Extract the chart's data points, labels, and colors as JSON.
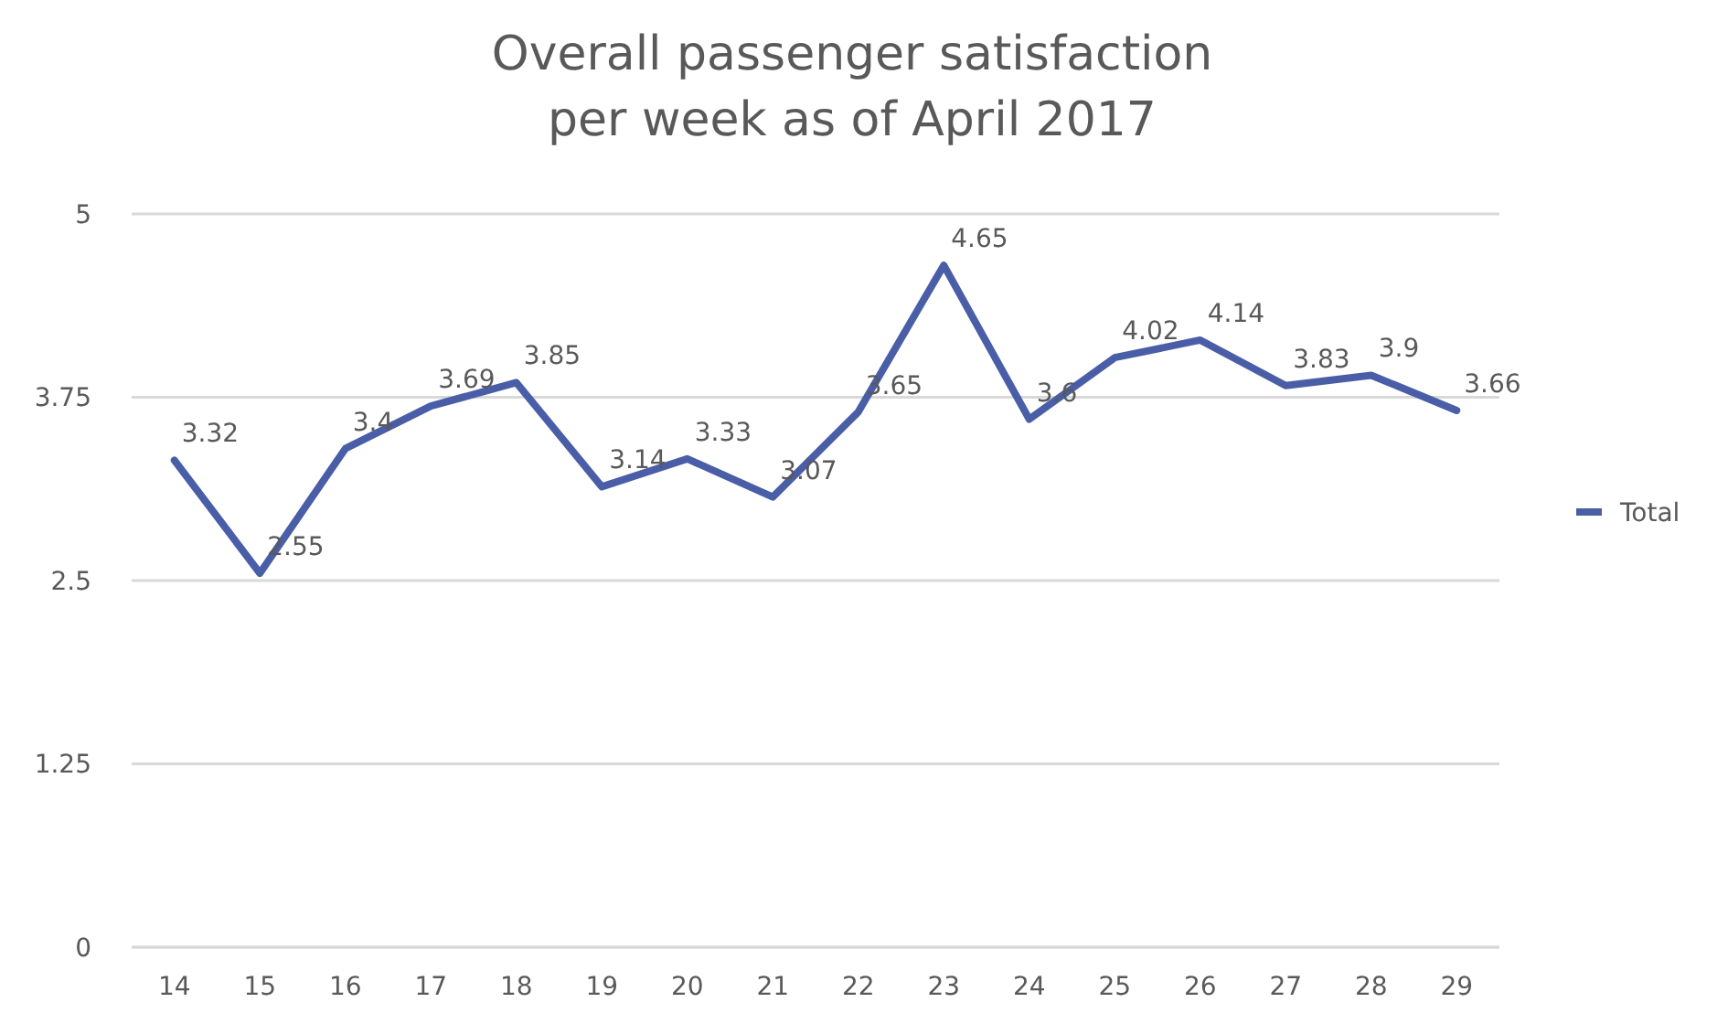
{
  "chart_data": {
    "type": "line",
    "title": "Overall passenger satisfaction\nper week as of April 2017",
    "categories": [
      "14",
      "15",
      "16",
      "17",
      "18",
      "19",
      "20",
      "21",
      "22",
      "23",
      "24",
      "25",
      "26",
      "27",
      "28",
      "29"
    ],
    "series": [
      {
        "name": "Total",
        "color": "#4a5ea8",
        "values": [
          3.32,
          2.55,
          3.4,
          3.69,
          3.85,
          3.14,
          3.33,
          3.07,
          3.65,
          4.65,
          3.6,
          4.02,
          4.14,
          3.83,
          3.9,
          3.66
        ]
      }
    ],
    "ylim": [
      0,
      5
    ],
    "yticks": [
      0,
      1.25,
      2.5,
      3.75,
      5
    ],
    "grid": "y",
    "legend": "right",
    "data_labels": true
  }
}
